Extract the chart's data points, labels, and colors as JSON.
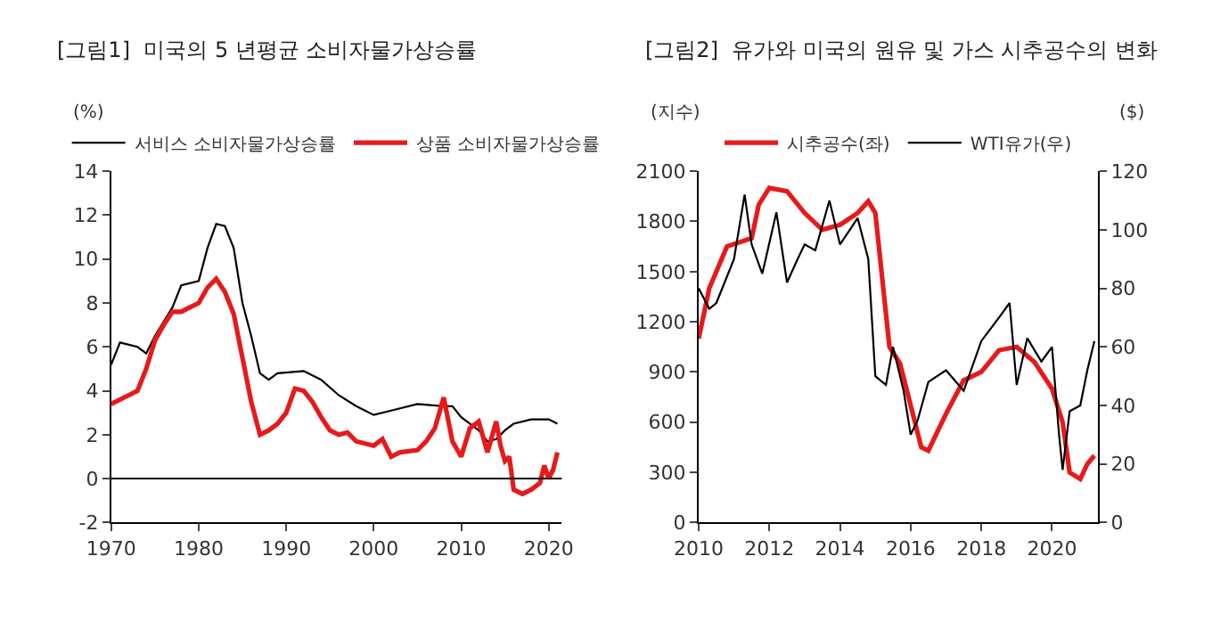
{
  "chart_data": [
    {
      "type": "line",
      "title": "[그림1]  미국의 5 년평균 소비자물가상승률",
      "ylabel": "(%)",
      "legend": "top",
      "ref_lines": [
        {
          "axis": "y",
          "value": 0,
          "color": "#000000"
        }
      ],
      "xlim": [
        1970,
        2021.5
      ],
      "xticks": [
        1970,
        1980,
        1990,
        2000,
        2010,
        2020
      ],
      "ylim": [
        -2,
        14
      ],
      "yticks": [
        -2,
        0,
        2,
        4,
        6,
        8,
        10,
        12,
        14
      ],
      "series": [
        {
          "name": "서비스 소비자물가상승률",
          "color": "#000000",
          "x": [
            1970,
            1971,
            1973,
            1974,
            1975,
            1977,
            1978,
            1980,
            1981,
            1982,
            1983,
            1984,
            1985,
            1986,
            1987,
            1988,
            1989,
            1992,
            1994,
            1996,
            1998,
            2000,
            2002,
            2005,
            2008,
            2009,
            2010,
            2012,
            2013,
            2014,
            2015,
            2016,
            2018,
            2020,
            2021
          ],
          "values": [
            5.2,
            6.2,
            6.0,
            5.7,
            6.5,
            7.8,
            8.8,
            9.0,
            10.5,
            11.6,
            11.5,
            10.5,
            8.0,
            6.5,
            4.8,
            4.5,
            4.8,
            4.9,
            4.5,
            3.8,
            3.3,
            2.9,
            3.1,
            3.4,
            3.3,
            3.3,
            2.8,
            2.2,
            1.7,
            1.8,
            2.2,
            2.5,
            2.7,
            2.7,
            2.5
          ]
        },
        {
          "name": "상품 소비자물가상승률",
          "color": "#e8191a",
          "x": [
            1970,
            1972,
            1973,
            1974,
            1975,
            1976,
            1977,
            1978,
            1979,
            1980,
            1981,
            1982,
            1983,
            1984,
            1985,
            1986,
            1987,
            1988,
            1989,
            1990,
            1991,
            1992,
            1993,
            1994,
            1995,
            1996,
            1997,
            1998,
            2000,
            2001,
            2002,
            2003,
            2005,
            2006,
            2007,
            2008,
            2009,
            2010,
            2011,
            2012,
            2013,
            2014,
            2014.5,
            2015,
            2015.5,
            2016,
            2017,
            2018,
            2019,
            2019.5,
            2020,
            2020.5,
            2021
          ],
          "values": [
            3.4,
            3.8,
            4.0,
            5.0,
            6.3,
            7.0,
            7.6,
            7.6,
            7.8,
            8.0,
            8.7,
            9.1,
            8.5,
            7.5,
            5.5,
            3.5,
            2.0,
            2.2,
            2.5,
            3.0,
            4.1,
            4.0,
            3.5,
            2.8,
            2.2,
            2.0,
            2.1,
            1.7,
            1.5,
            1.8,
            1.0,
            1.2,
            1.3,
            1.7,
            2.3,
            3.7,
            1.7,
            1.0,
            2.3,
            2.6,
            1.2,
            2.6,
            1.5,
            0.8,
            1.0,
            -0.5,
            -0.7,
            -0.5,
            -0.2,
            0.6,
            0.0,
            0.4,
            1.2
          ]
        }
      ]
    },
    {
      "type": "line",
      "title": "[그림2]  유가와 미국의 원유 및 가스 시추공수의 변화",
      "ylabel": "(지수)",
      "y2label": "($)",
      "legend": "top",
      "xlim": [
        2010,
        2021.3
      ],
      "xticks": [
        2010,
        2012,
        2014,
        2016,
        2018,
        2020
      ],
      "ylim": [
        0,
        2100
      ],
      "yticks": [
        0,
        300,
        600,
        900,
        1200,
        1500,
        1800,
        2100
      ],
      "y2lim": [
        0,
        120
      ],
      "y2ticks": [
        0,
        20,
        40,
        60,
        80,
        100,
        120
      ],
      "series": [
        {
          "name": "시추공수(좌)",
          "color": "#e8191a",
          "x": [
            2010,
            2010.3,
            2010.8,
            2011.5,
            2011.7,
            2012.0,
            2012.5,
            2013,
            2013.5,
            2014,
            2014.5,
            2014.8,
            2015,
            2015.2,
            2015.4,
            2015.7,
            2016,
            2016.3,
            2016.5,
            2017,
            2017.5,
            2018,
            2018.5,
            2019,
            2019.5,
            2020,
            2020.3,
            2020.5,
            2020.8,
            2021,
            2021.2
          ],
          "values": [
            1100,
            1400,
            1650,
            1700,
            1900,
            2000,
            1980,
            1850,
            1750,
            1780,
            1850,
            1920,
            1850,
            1450,
            1050,
            950,
            700,
            450,
            430,
            650,
            850,
            900,
            1030,
            1050,
            960,
            800,
            600,
            300,
            260,
            350,
            400
          ]
        },
        {
          "name": "WTI유가(우)",
          "color": "#000000",
          "axis": "y2",
          "x": [
            2010,
            2010.3,
            2010.5,
            2011,
            2011.3,
            2011.5,
            2011.8,
            2012.2,
            2012.5,
            2012.8,
            2013,
            2013.3,
            2013.7,
            2014,
            2014.5,
            2014.8,
            2015,
            2015.3,
            2015.5,
            2015.8,
            2016,
            2016.2,
            2016.5,
            2017,
            2017.5,
            2018,
            2018.5,
            2018.8,
            2019,
            2019.3,
            2019.7,
            2020,
            2020.2,
            2020.3,
            2020.5,
            2020.8,
            2021,
            2021.2
          ],
          "values": [
            80,
            73,
            75,
            90,
            112,
            95,
            85,
            106,
            82,
            90,
            95,
            93,
            110,
            95,
            104,
            90,
            50,
            47,
            60,
            45,
            30,
            35,
            48,
            52,
            45,
            62,
            70,
            75,
            47,
            63,
            55,
            60,
            30,
            18,
            38,
            40,
            52,
            62
          ]
        }
      ]
    }
  ]
}
